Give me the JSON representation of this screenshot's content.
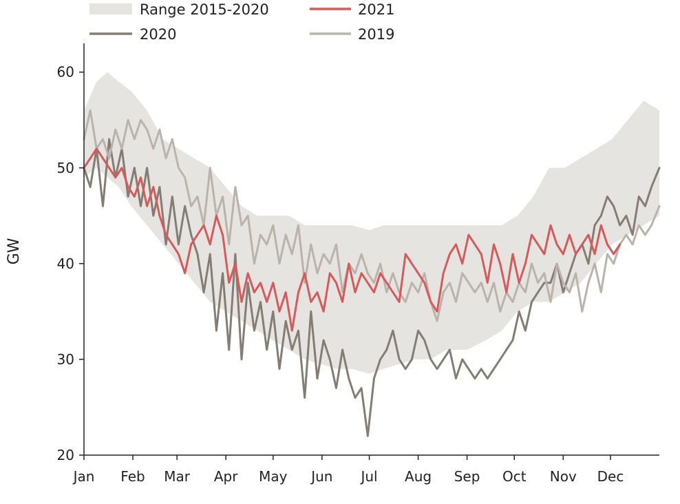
{
  "chart_data": {
    "type": "line",
    "title": "",
    "xlabel": "",
    "ylabel": "GW",
    "xlim": [
      0,
      365
    ],
    "ylim": [
      20,
      63
    ],
    "grid": false,
    "legend_position": "top",
    "x_ticks": [
      {
        "label": "Jan",
        "day": 0
      },
      {
        "label": "Feb",
        "day": 31
      },
      {
        "label": "Mar",
        "day": 59
      },
      {
        "label": "Apr",
        "day": 90
      },
      {
        "label": "May",
        "day": 120
      },
      {
        "label": "Jun",
        "day": 151
      },
      {
        "label": "Jul",
        "day": 181
      },
      {
        "label": "Aug",
        "day": 212
      },
      {
        "label": "Sep",
        "day": 243
      },
      {
        "label": "Oct",
        "day": 273
      },
      {
        "label": "Nov",
        "day": 304
      },
      {
        "label": "Dec",
        "day": 334
      }
    ],
    "y_ticks": [
      20,
      30,
      40,
      50,
      60
    ],
    "band": {
      "name": "Range 2015-2020",
      "color": "#e6e4e1",
      "x": [
        0,
        8,
        15,
        22,
        30,
        40,
        50,
        60,
        70,
        80,
        90,
        100,
        110,
        120,
        130,
        140,
        150,
        160,
        170,
        181,
        190,
        200,
        210,
        220,
        230,
        243,
        255,
        265,
        275,
        285,
        295,
        305,
        315,
        325,
        335,
        345,
        355,
        365
      ],
      "upper": [
        56,
        59,
        60,
        59,
        58,
        56,
        53,
        52,
        51,
        50,
        48,
        46,
        45,
        45,
        45,
        44,
        44,
        44,
        44,
        43.5,
        44,
        44,
        44,
        44,
        44,
        44,
        44,
        44,
        45,
        47,
        50,
        50,
        51,
        52,
        53,
        55,
        57,
        56
      ],
      "lower": [
        49,
        50,
        49,
        48,
        46,
        44,
        42,
        40,
        38,
        36,
        35,
        34,
        33,
        32,
        31,
        30,
        29.5,
        29,
        29,
        28.5,
        29,
        29.5,
        30,
        30,
        31,
        31,
        32,
        33,
        35,
        36,
        36,
        37,
        38,
        40,
        42,
        43,
        44,
        45
      ]
    },
    "series": [
      {
        "name": "2020",
        "color": "#857c72",
        "x": [
          0,
          4,
          8,
          12,
          16,
          20,
          24,
          28,
          32,
          36,
          40,
          44,
          48,
          52,
          56,
          60,
          64,
          68,
          72,
          76,
          80,
          84,
          88,
          92,
          96,
          100,
          104,
          108,
          112,
          116,
          120,
          124,
          128,
          132,
          136,
          140,
          144,
          148,
          152,
          156,
          160,
          164,
          168,
          172,
          176,
          180,
          184,
          188,
          192,
          196,
          200,
          204,
          208,
          212,
          216,
          220,
          224,
          228,
          232,
          236,
          240,
          244,
          248,
          252,
          256,
          260,
          264,
          268,
          272,
          276,
          280,
          284,
          288,
          292,
          296,
          300,
          304,
          308,
          312,
          316,
          320,
          324,
          328,
          332,
          336,
          340,
          344,
          348,
          352,
          356,
          360,
          365
        ],
        "values": [
          50,
          48,
          52,
          46,
          53,
          49,
          52,
          47,
          50,
          46,
          50,
          45,
          48,
          42,
          47,
          42,
          46,
          43,
          41,
          37,
          41,
          33,
          39,
          31,
          41,
          30,
          38,
          33,
          36,
          31,
          35,
          29,
          34,
          31,
          33,
          26,
          35,
          28,
          32,
          30,
          27,
          31,
          28,
          26,
          27,
          22,
          28,
          30,
          31,
          33,
          30,
          29,
          30,
          33,
          32,
          30,
          29,
          30,
          31,
          28,
          30,
          29,
          28,
          29,
          28,
          29,
          30,
          31,
          32,
          35,
          33,
          36,
          37,
          38,
          38,
          40,
          37,
          39,
          41,
          42,
          40,
          44,
          45,
          47,
          46,
          44,
          45,
          43,
          47,
          46,
          48,
          50
        ]
      },
      {
        "name": "2019",
        "color": "#bbb3aa",
        "x": [
          0,
          4,
          8,
          12,
          16,
          20,
          24,
          28,
          32,
          36,
          40,
          44,
          48,
          52,
          56,
          60,
          64,
          68,
          72,
          76,
          80,
          84,
          88,
          92,
          96,
          100,
          104,
          108,
          112,
          116,
          120,
          124,
          128,
          132,
          136,
          140,
          144,
          148,
          152,
          156,
          160,
          164,
          168,
          172,
          176,
          180,
          184,
          188,
          192,
          196,
          200,
          204,
          208,
          212,
          216,
          220,
          224,
          228,
          232,
          236,
          240,
          244,
          248,
          252,
          256,
          260,
          264,
          268,
          272,
          276,
          280,
          284,
          288,
          292,
          296,
          300,
          304,
          308,
          312,
          316,
          320,
          324,
          328,
          332,
          336,
          340,
          344,
          348,
          352,
          356,
          360,
          365
        ],
        "values": [
          53,
          56,
          52,
          53,
          51,
          54,
          52,
          55,
          53,
          55,
          54,
          52,
          54,
          51,
          53,
          50,
          49,
          46,
          47,
          44,
          50,
          45,
          47,
          42,
          48,
          44,
          45,
          40,
          43,
          42,
          44,
          40,
          43,
          41,
          44,
          38,
          42,
          39,
          41,
          40,
          42,
          37,
          40,
          39,
          41,
          39,
          38,
          40,
          37,
          39,
          37,
          36,
          38,
          37,
          39,
          36,
          34,
          37,
          38,
          36,
          39,
          38,
          37,
          38,
          36,
          38,
          35,
          37,
          36,
          38,
          37,
          40,
          38,
          39,
          36,
          40,
          38,
          37,
          39,
          35,
          38,
          40,
          37,
          41,
          40,
          42,
          43,
          42,
          44,
          43,
          44,
          46
        ]
      },
      {
        "name": "2021",
        "color": "#d65a5a",
        "x": [
          0,
          4,
          8,
          12,
          16,
          20,
          24,
          28,
          32,
          36,
          40,
          44,
          48,
          52,
          56,
          60,
          64,
          68,
          72,
          76,
          80,
          84,
          88,
          92,
          96,
          100,
          104,
          108,
          112,
          116,
          120,
          124,
          128,
          132,
          136,
          140,
          144,
          148,
          152,
          156,
          160,
          164,
          168,
          172,
          176,
          180,
          184,
          188,
          192,
          196,
          200,
          204,
          208,
          212,
          216,
          220,
          224,
          228,
          232,
          236,
          240,
          244,
          248,
          252,
          256,
          260,
          264,
          268,
          272,
          276,
          280,
          284,
          288,
          292,
          296,
          300,
          304,
          308,
          312,
          316,
          320,
          324,
          328,
          332,
          336,
          340
        ],
        "values": [
          50,
          51,
          52,
          51,
          50,
          49,
          50,
          48,
          47,
          49,
          46,
          48,
          45,
          43,
          42,
          41,
          39,
          42,
          43,
          44,
          42,
          45,
          43,
          38,
          40,
          36,
          39,
          37,
          38,
          36,
          38,
          35,
          37,
          33,
          37,
          39,
          36,
          37,
          35,
          39,
          38,
          36,
          40,
          37,
          39,
          38,
          37,
          39,
          38,
          37,
          36,
          41,
          40,
          39,
          38,
          36,
          35,
          39,
          41,
          42,
          40,
          43,
          42,
          41,
          38,
          42,
          40,
          37,
          41,
          38,
          40,
          43,
          42,
          41,
          44,
          42,
          41,
          43,
          41,
          42,
          43,
          41,
          44,
          42,
          41,
          42
        ]
      }
    ],
    "legend": [
      {
        "label": "Range 2015-2020",
        "kind": "band",
        "color": "#e6e4e1"
      },
      {
        "label": "2021",
        "kind": "line",
        "color": "#d65a5a"
      },
      {
        "label": "2020",
        "kind": "line",
        "color": "#857c72"
      },
      {
        "label": "2019",
        "kind": "line",
        "color": "#bbb3aa"
      }
    ]
  }
}
